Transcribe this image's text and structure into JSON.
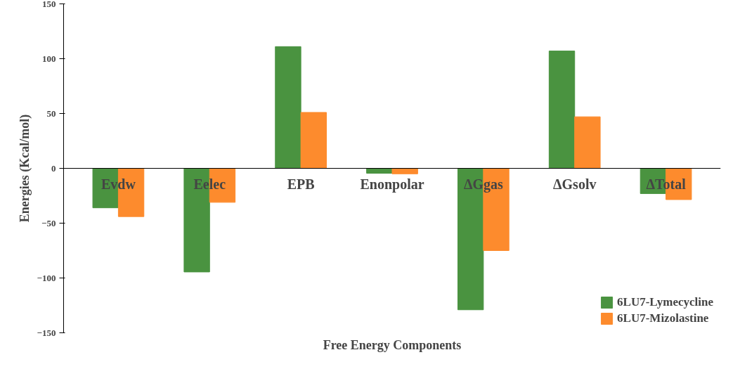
{
  "chart_data": {
    "type": "bar",
    "xlabel": "Free Energy Components",
    "ylabel": "Energies (Kcal/mol)",
    "categories": [
      "Evdw",
      "Eelec",
      "EPB",
      "Enonpolar",
      "ΔGgas",
      "ΔGsolv",
      "ΔTotal"
    ],
    "series": [
      {
        "name": "6LU7-Lymecycline",
        "color": "#4a9340",
        "values": [
          -36,
          -94.5,
          111,
          -4.5,
          -129,
          107,
          -23
        ]
      },
      {
        "name": "6LU7-Mizolastine",
        "color": "#fd8b2d",
        "values": [
          -44,
          -31,
          51,
          -5,
          -75,
          47,
          -28.5
        ]
      }
    ],
    "ylim": [
      -150,
      150
    ],
    "yticks": [
      -150,
      -100,
      -50,
      0,
      50,
      100,
      150
    ],
    "grid": false,
    "legend": "bottom right"
  }
}
